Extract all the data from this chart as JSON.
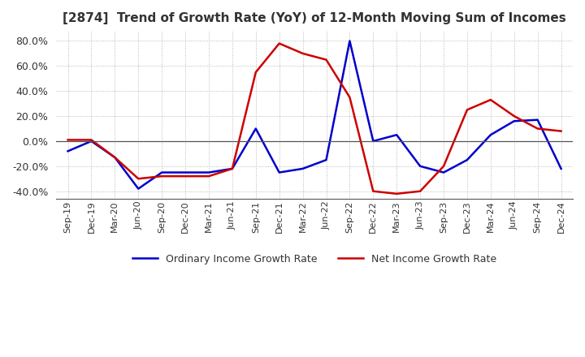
{
  "title": "[2874]  Trend of Growth Rate (YoY) of 12-Month Moving Sum of Incomes",
  "title_fontsize": 11,
  "title_color": "#333333",
  "background_color": "#ffffff",
  "grid_color": "#aaaaaa",
  "ordinary_color": "#0000cc",
  "net_color": "#cc0000",
  "ordinary_label": "Ordinary Income Growth Rate",
  "net_label": "Net Income Growth Rate",
  "ylim": [
    -0.46,
    0.88
  ],
  "yticks": [
    -0.4,
    -0.2,
    0.0,
    0.2,
    0.4,
    0.6,
    0.8
  ],
  "ordinary_values": [
    -0.08,
    0.0,
    -0.13,
    -0.38,
    -0.25,
    -0.25,
    -0.25,
    -0.22,
    0.1,
    -0.25,
    -0.22,
    -0.15,
    0.8,
    0.0,
    0.05,
    -0.2,
    -0.25,
    -0.15,
    0.05,
    0.16,
    0.17,
    -0.22
  ],
  "net_values": [
    0.01,
    0.01,
    -0.13,
    -0.3,
    -0.28,
    -0.28,
    -0.28,
    -0.22,
    0.55,
    0.78,
    0.7,
    0.65,
    0.35,
    -0.4,
    -0.42,
    -0.4,
    -0.2,
    0.25,
    0.33,
    0.2,
    0.1,
    0.08
  ],
  "xtick_labels": [
    "Sep-19",
    "Dec-19",
    "Mar-20",
    "Jun-20",
    "Sep-20",
    "Dec-20",
    "Mar-21",
    "Jun-21",
    "Sep-21",
    "Dec-21",
    "Mar-22",
    "Jun-22",
    "Sep-22",
    "Dec-22",
    "Mar-23",
    "Jun-23",
    "Sep-23",
    "Dec-23",
    "Mar-24",
    "Jun-24",
    "Sep-24",
    "Dec-24"
  ]
}
